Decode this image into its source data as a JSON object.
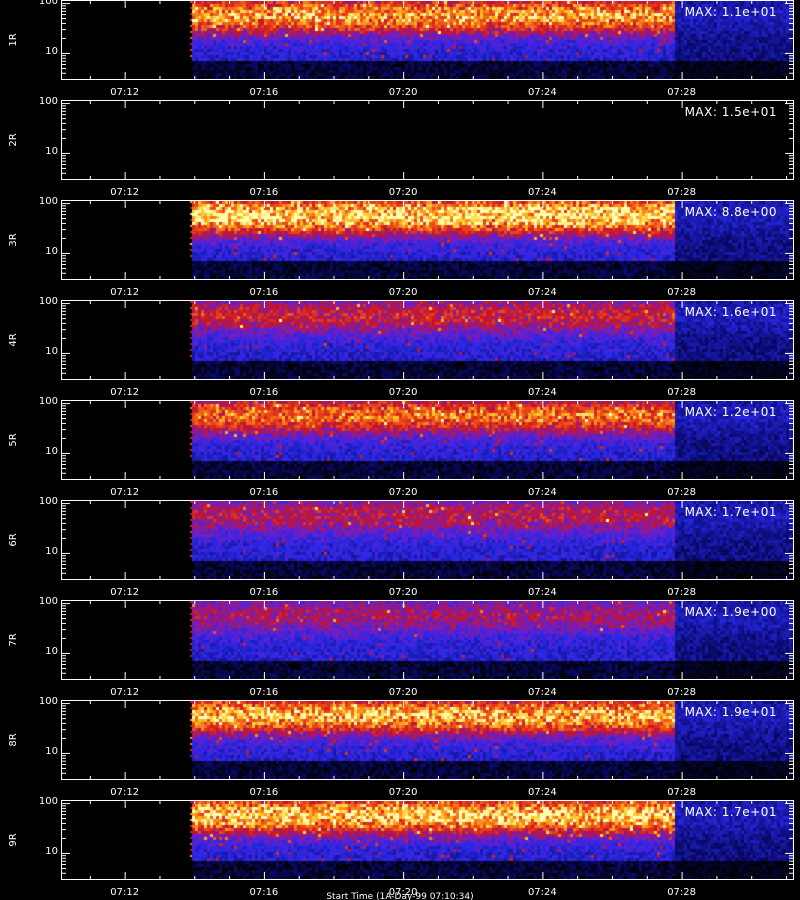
{
  "chart_data": [
    {
      "type": "heatmap",
      "ylabel": "1R",
      "max_label": "MAX: 1.1e+01",
      "max": 11,
      "band_intensity": 0.75,
      "empty": false
    },
    {
      "type": "heatmap",
      "ylabel": "2R",
      "max_label": "MAX: 1.5e+01",
      "max": 15,
      "band_intensity": 0.0,
      "empty": true
    },
    {
      "type": "heatmap",
      "ylabel": "3R",
      "max_label": "MAX: 8.8e+00",
      "max": 8.8,
      "band_intensity": 0.9,
      "empty": false
    },
    {
      "type": "heatmap",
      "ylabel": "4R",
      "max_label": "MAX: 1.6e+01",
      "max": 16,
      "band_intensity": 0.45,
      "empty": false
    },
    {
      "type": "heatmap",
      "ylabel": "5R",
      "max_label": "MAX: 1.2e+01",
      "max": 12,
      "band_intensity": 0.65,
      "empty": false
    },
    {
      "type": "heatmap",
      "ylabel": "6R",
      "max_label": "MAX: 1.7e+01",
      "max": 17,
      "band_intensity": 0.4,
      "empty": false
    },
    {
      "type": "heatmap",
      "ylabel": "7R",
      "max_label": "MAX: 1.9e+00",
      "max": 1.9,
      "band_intensity": 0.35,
      "empty": false
    },
    {
      "type": "heatmap",
      "ylabel": "8R",
      "max_label": "MAX: 1.9e+01",
      "max": 19,
      "band_intensity": 0.8,
      "empty": false
    },
    {
      "type": "heatmap",
      "ylabel": "9R",
      "max_label": "MAX: 1.7e+01",
      "max": 17,
      "band_intensity": 0.85,
      "empty": false
    }
  ],
  "axes": {
    "x_ticks": [
      "07:12",
      "07:16",
      "07:20",
      "07:24",
      "07:28"
    ],
    "x_tick_minutes": [
      432,
      436,
      440,
      444,
      448
    ],
    "x_range_minutes": [
      430.2,
      451.2
    ],
    "data_start_minutes": 433.95,
    "data_dense_end_minutes": 447.75,
    "y_ticks": [
      "100",
      "10"
    ],
    "y_tick_values": [
      100,
      10
    ],
    "y_range": [
      3,
      110
    ],
    "y_scale": "log",
    "band_center": 60
  },
  "footer": "Start Time (1A-Day-99 07:10:34)",
  "colors": {
    "background": "#000000",
    "axis": "#ffffff",
    "text": "#ffffff"
  }
}
